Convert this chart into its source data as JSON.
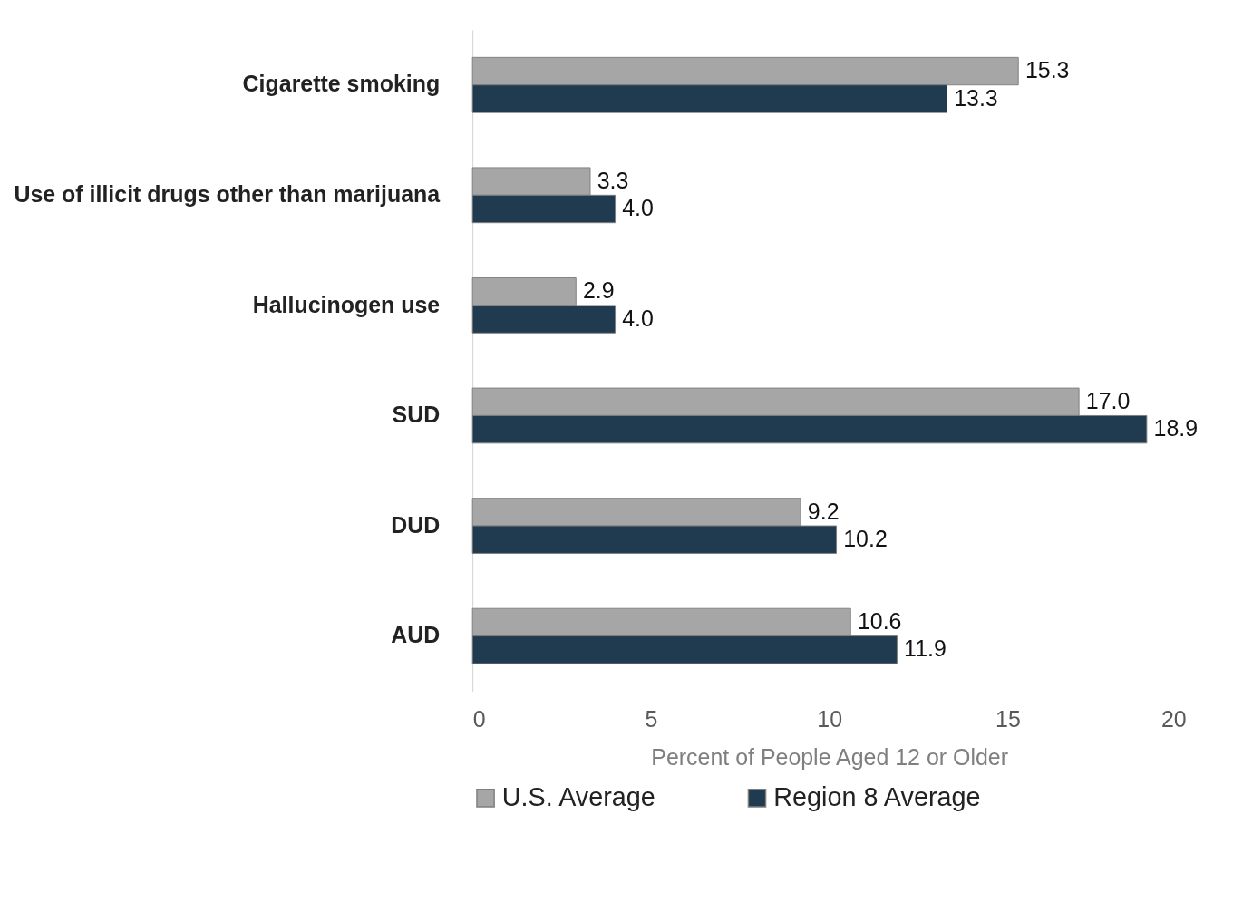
{
  "chart_data": {
    "type": "bar",
    "orientation": "horizontal",
    "xlabel": "Percent of People Aged 12 or Older",
    "categories": [
      "Cigarette smoking",
      "Use of illicit drugs other than marijuana",
      "Hallucinogen use",
      "SUD",
      "DUD",
      "AUD"
    ],
    "series": [
      {
        "name": "U.S. Average",
        "color": "#a6a6a6",
        "values": [
          15.3,
          3.3,
          2.9,
          17.0,
          9.2,
          10.6
        ],
        "value_labels": [
          "15.3",
          "3.3",
          "2.9",
          "17.0",
          "9.2",
          "10.6"
        ]
      },
      {
        "name": "Region 8 Average",
        "color": "#203a4f",
        "values": [
          13.3,
          4.0,
          4.0,
          18.9,
          10.2,
          11.9
        ],
        "value_labels": [
          "13.3",
          "4.0",
          "4.0",
          "18.9",
          "10.2",
          "11.9"
        ]
      }
    ],
    "xlim": [
      0,
      20
    ],
    "xticks": [
      0,
      5,
      10,
      15,
      20
    ],
    "grid": false,
    "legend": "bottom"
  }
}
